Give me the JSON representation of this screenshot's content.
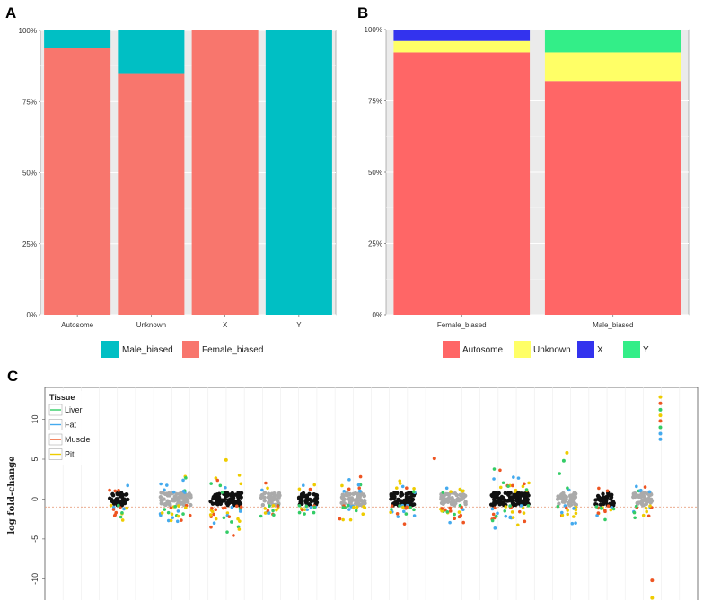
{
  "chart_data": [
    {
      "id": "A",
      "type": "bar",
      "stacked": true,
      "panel_label": "A",
      "categories": [
        "Autosome",
        "Unknown",
        "X",
        "Y"
      ],
      "series": [
        {
          "name": "Female_biased",
          "color": "#F8766D",
          "values": [
            0.94,
            0.85,
            1.0,
            0.0
          ]
        },
        {
          "name": "Male_biased",
          "color": "#00BFC4",
          "values": [
            0.06,
            0.15,
            0.0,
            1.0
          ]
        }
      ],
      "legend_order": [
        "Male_biased",
        "Female_biased"
      ],
      "ylim": [
        0,
        1
      ],
      "yticks": [
        "0%",
        "25%",
        "50%",
        "75%",
        "100%"
      ],
      "grid": true,
      "legend_position": "bottom"
    },
    {
      "id": "B",
      "type": "bar",
      "stacked": true,
      "panel_label": "B",
      "categories": [
        "Female_biased",
        "Male_biased"
      ],
      "series": [
        {
          "name": "Autosome",
          "color": "#FF6666",
          "values": [
            0.92,
            0.82
          ]
        },
        {
          "name": "Unknown",
          "color": "#FFFF66",
          "values": [
            0.04,
            0.1
          ]
        },
        {
          "name": "X",
          "color": "#3333EE",
          "values": [
            0.04,
            0.0
          ]
        },
        {
          "name": "Y",
          "color": "#33EE88",
          "values": [
            0.0,
            0.08
          ]
        }
      ],
      "legend_order": [
        "Autosome",
        "Unknown",
        "X",
        "Y"
      ],
      "ylim": [
        0,
        1
      ],
      "yticks": [
        "0%",
        "25%",
        "50%",
        "75%",
        "100%"
      ],
      "grid": true,
      "legend_position": "bottom"
    },
    {
      "id": "C",
      "type": "scatter",
      "panel_label": "C",
      "ylabel": "log fold-change",
      "ylim": [
        -13,
        14
      ],
      "yticks": [
        -10,
        -5,
        0,
        5,
        10
      ],
      "threshold_lines": [
        1,
        -1
      ],
      "threshold_color": "#E8A080",
      "legend_title": "Tissue",
      "legend_position": "top-left",
      "tissues": [
        {
          "name": "Liver",
          "color": "#33CC66"
        },
        {
          "name": "Fat",
          "color": "#44AAEE"
        },
        {
          "name": "Muscle",
          "color": "#EE5522"
        },
        {
          "name": "Pit",
          "color": "#EECC00"
        }
      ],
      "clusters": [
        {
          "center": 0.1,
          "width": 0.03,
          "n": 40,
          "spread": 2.5,
          "color": "black"
        },
        {
          "center": 0.19,
          "width": 0.05,
          "n": 70,
          "spread": 3.0,
          "color": "gray"
        },
        {
          "center": 0.27,
          "width": 0.05,
          "n": 80,
          "spread": 4.0,
          "color": "black"
        },
        {
          "center": 0.34,
          "width": 0.03,
          "n": 40,
          "spread": 2.5,
          "color": "gray"
        },
        {
          "center": 0.4,
          "width": 0.03,
          "n": 40,
          "spread": 2.5,
          "color": "black"
        },
        {
          "center": 0.47,
          "width": 0.04,
          "n": 60,
          "spread": 2.5,
          "color": "gray"
        },
        {
          "center": 0.55,
          "width": 0.04,
          "n": 60,
          "spread": 3.0,
          "color": "black"
        },
        {
          "center": 0.63,
          "width": 0.04,
          "n": 60,
          "spread": 3.0,
          "color": "gray"
        },
        {
          "center": 0.72,
          "width": 0.06,
          "n": 100,
          "spread": 4.0,
          "color": "black"
        },
        {
          "center": 0.81,
          "width": 0.03,
          "n": 40,
          "spread": 3.0,
          "color": "gray"
        },
        {
          "center": 0.87,
          "width": 0.03,
          "n": 40,
          "spread": 2.5,
          "color": "black"
        },
        {
          "center": 0.93,
          "width": 0.03,
          "n": 40,
          "spread": 2.5,
          "color": "gray"
        }
      ],
      "outliers": [
        {
          "x": 0.958,
          "y": 12.8,
          "tissue": "Pit"
        },
        {
          "x": 0.958,
          "y": 12.0,
          "tissue": "Muscle"
        },
        {
          "x": 0.958,
          "y": 11.2,
          "tissue": "Liver"
        },
        {
          "x": 0.958,
          "y": 10.5,
          "tissue": "Pit"
        },
        {
          "x": 0.958,
          "y": 9.8,
          "tissue": "Muscle"
        },
        {
          "x": 0.958,
          "y": 9.0,
          "tissue": "Liver"
        },
        {
          "x": 0.958,
          "y": 8.2,
          "tissue": "Fat"
        },
        {
          "x": 0.958,
          "y": 7.5,
          "tissue": "Fat"
        },
        {
          "x": 0.945,
          "y": -10.2,
          "tissue": "Muscle"
        },
        {
          "x": 0.945,
          "y": -12.4,
          "tissue": "Pit"
        },
        {
          "x": 0.6,
          "y": 5.1,
          "tissue": "Muscle"
        },
        {
          "x": 0.27,
          "y": 4.9,
          "tissue": "Pit"
        },
        {
          "x": 0.81,
          "y": 5.8,
          "tissue": "Pit"
        },
        {
          "x": 0.805,
          "y": 4.8,
          "tissue": "Liver"
        }
      ]
    }
  ],
  "legend_a": {
    "items": [
      "Male_biased",
      "Female_biased"
    ]
  },
  "legend_b": {
    "items": [
      "Autosome",
      "Unknown",
      "X",
      "Y"
    ]
  }
}
